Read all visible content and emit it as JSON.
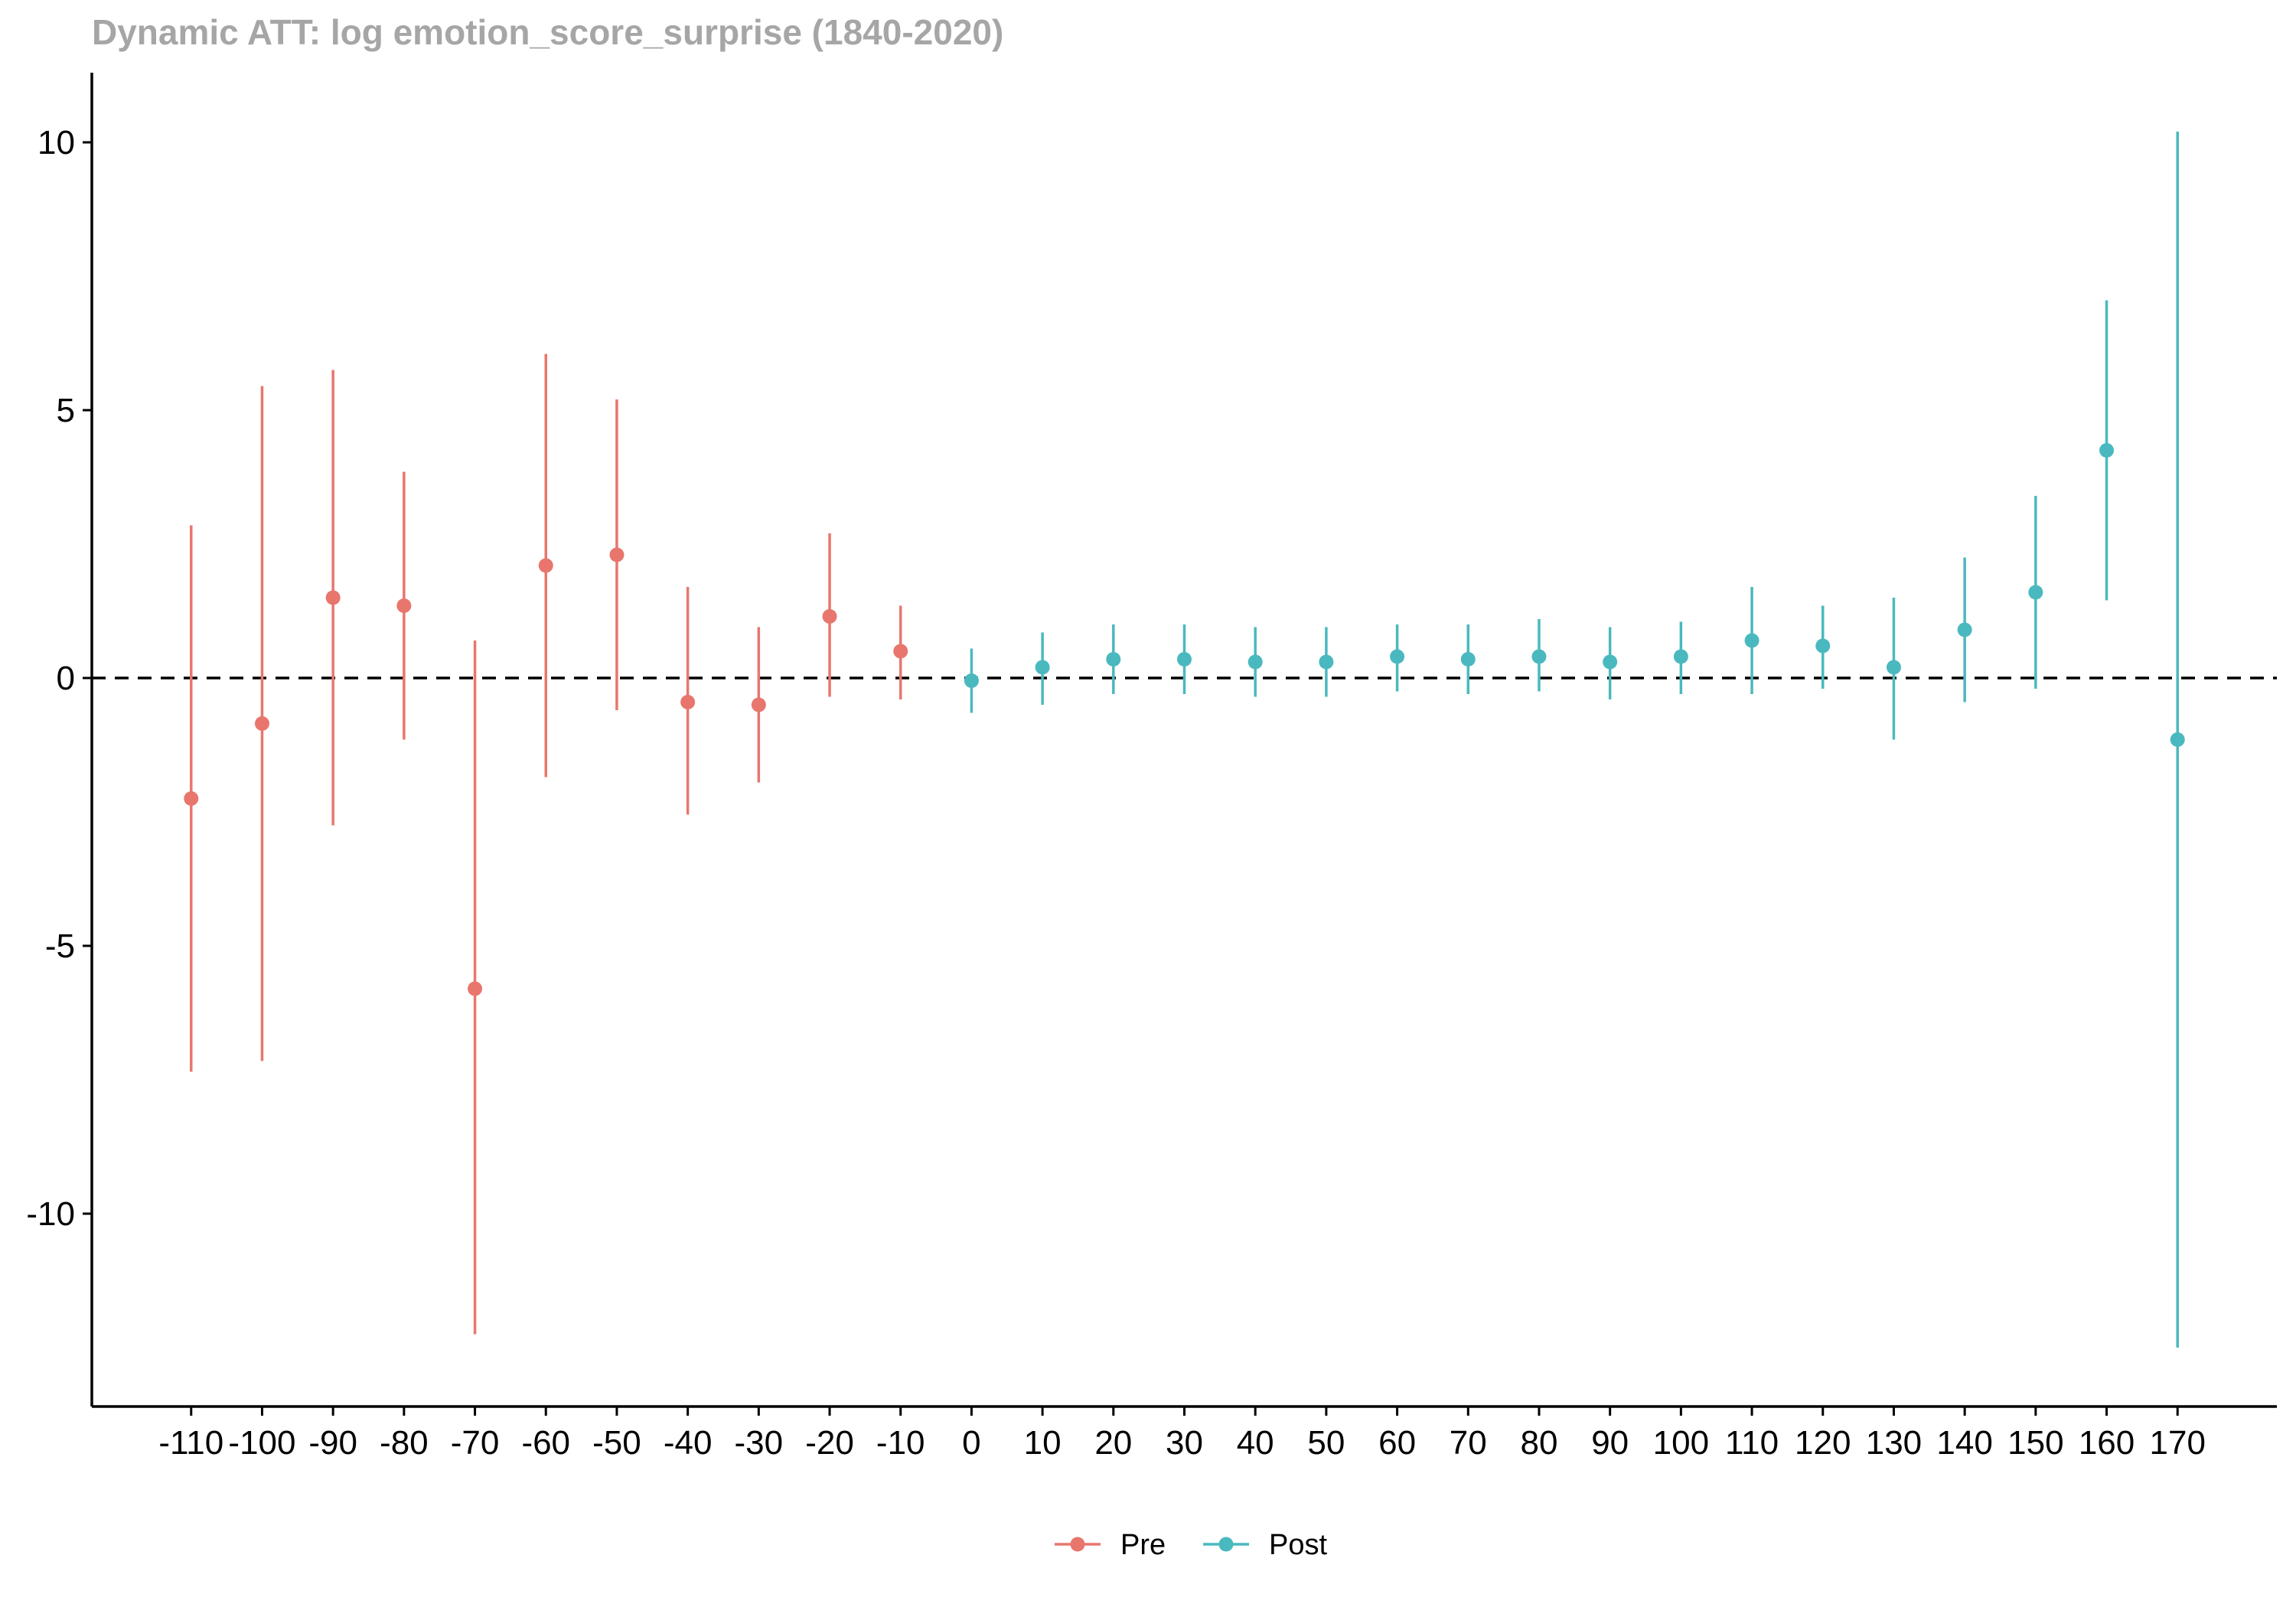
{
  "chart_data": {
    "type": "scatter",
    "subtype": "pointrange",
    "title": "Dynamic ATT: log emotion_score_surprise (1840-2020)",
    "xlabel": "",
    "ylabel": "",
    "x_ticks": [
      "-110",
      "-100",
      "-90",
      "-80",
      "-70",
      "-60",
      "-50",
      "-40",
      "-30",
      "-20",
      "-10",
      "0",
      "10",
      "20",
      "30",
      "40",
      "50",
      "60",
      "70",
      "80",
      "90",
      "100",
      "110",
      "120",
      "130",
      "140",
      "150",
      "160",
      "170"
    ],
    "y_ticks": [
      10,
      5,
      0,
      -5,
      -10
    ],
    "xlim": [
      -124,
      184
    ],
    "ylim": [
      -13.6,
      11.3
    ],
    "reference_line": {
      "y": 0,
      "style": "dashed"
    },
    "grid": false,
    "legend_position": "bottom",
    "series": [
      {
        "name": "Pre",
        "color": "#e8766d",
        "points": [
          {
            "x": -110,
            "y": -2.25,
            "lo": -7.35,
            "hi": 2.85
          },
          {
            "x": -100,
            "y": -0.85,
            "lo": -7.15,
            "hi": 5.45
          },
          {
            "x": -90,
            "y": 1.5,
            "lo": -2.75,
            "hi": 5.75
          },
          {
            "x": -80,
            "y": 1.35,
            "lo": -1.15,
            "hi": 3.85
          },
          {
            "x": -70,
            "y": -5.8,
            "lo": -12.25,
            "hi": 0.7
          },
          {
            "x": -60,
            "y": 2.1,
            "lo": -1.85,
            "hi": 6.05
          },
          {
            "x": -50,
            "y": 2.3,
            "lo": -0.6,
            "hi": 5.2
          },
          {
            "x": -40,
            "y": -0.45,
            "lo": -2.55,
            "hi": 1.7
          },
          {
            "x": -30,
            "y": -0.5,
            "lo": -1.95,
            "hi": 0.95
          },
          {
            "x": -20,
            "y": 1.15,
            "lo": -0.35,
            "hi": 2.7
          },
          {
            "x": -10,
            "y": 0.5,
            "lo": -0.4,
            "hi": 1.35
          }
        ]
      },
      {
        "name": "Post",
        "color": "#4ab9bf",
        "points": [
          {
            "x": 0,
            "y": -0.05,
            "lo": -0.65,
            "hi": 0.55
          },
          {
            "x": 10,
            "y": 0.2,
            "lo": -0.5,
            "hi": 0.85
          },
          {
            "x": 20,
            "y": 0.35,
            "lo": -0.3,
            "hi": 1.0
          },
          {
            "x": 30,
            "y": 0.35,
            "lo": -0.3,
            "hi": 1.0
          },
          {
            "x": 40,
            "y": 0.3,
            "lo": -0.35,
            "hi": 0.95
          },
          {
            "x": 50,
            "y": 0.3,
            "lo": -0.35,
            "hi": 0.95
          },
          {
            "x": 60,
            "y": 0.4,
            "lo": -0.25,
            "hi": 1.0
          },
          {
            "x": 70,
            "y": 0.35,
            "lo": -0.3,
            "hi": 1.0
          },
          {
            "x": 80,
            "y": 0.4,
            "lo": -0.25,
            "hi": 1.1
          },
          {
            "x": 90,
            "y": 0.3,
            "lo": -0.4,
            "hi": 0.95
          },
          {
            "x": 100,
            "y": 0.4,
            "lo": -0.3,
            "hi": 1.05
          },
          {
            "x": 110,
            "y": 0.7,
            "lo": -0.3,
            "hi": 1.7
          },
          {
            "x": 120,
            "y": 0.6,
            "lo": -0.2,
            "hi": 1.35
          },
          {
            "x": 130,
            "y": 0.2,
            "lo": -1.15,
            "hi": 1.5
          },
          {
            "x": 140,
            "y": 0.9,
            "lo": -0.45,
            "hi": 2.25
          },
          {
            "x": 150,
            "y": 1.6,
            "lo": -0.2,
            "hi": 3.4
          },
          {
            "x": 160,
            "y": 4.25,
            "lo": 1.45,
            "hi": 7.05
          },
          {
            "x": 170,
            "y": -1.15,
            "lo": -12.5,
            "hi": 10.2
          }
        ]
      }
    ]
  }
}
